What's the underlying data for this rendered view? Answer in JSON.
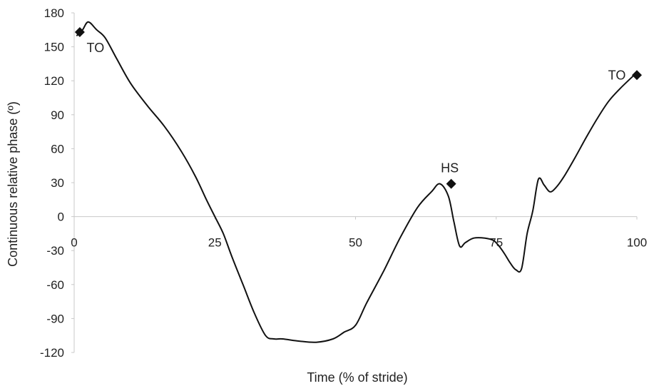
{
  "chart_data": {
    "type": "line",
    "title": "",
    "xlabel": "Time (% of stride)",
    "ylabel": "Continuous relative phase (º)",
    "xlim": [
      0,
      100
    ],
    "ylim": [
      -120,
      180
    ],
    "xticks": [
      0,
      25,
      50,
      75,
      100
    ],
    "yticks": [
      180,
      150,
      120,
      90,
      60,
      30,
      0,
      -30,
      -60,
      -90,
      -120
    ],
    "grid": false,
    "series": [
      {
        "x": [
          0.5,
          1.5,
          2.5,
          4,
          5.5,
          7.5,
          10,
          13,
          16,
          19,
          21.5,
          23.5,
          25,
          26.5,
          28,
          30,
          32,
          34,
          35.5,
          37,
          40,
          43,
          46,
          48,
          50,
          52,
          55,
          58,
          61,
          63.5,
          65,
          66.5,
          67.5,
          68.5,
          69.5,
          71,
          73,
          74.5,
          75.5,
          76.5,
          77.5,
          78.5,
          79.5,
          80.5,
          81.5,
          82.5,
          83.5,
          84.5,
          85.5,
          87,
          89,
          91,
          93,
          95,
          97,
          99.5
        ],
        "y": [
          160,
          165,
          172,
          165,
          158,
          140,
          118,
          98,
          80,
          58,
          36,
          15,
          0,
          -15,
          -35,
          -60,
          -85,
          -105,
          -108,
          -108,
          -110,
          -111,
          -108,
          -102,
          -96,
          -76,
          -48,
          -18,
          8,
          22,
          29,
          18,
          -5,
          -26,
          -23,
          -19,
          -19,
          -21,
          -26,
          -33,
          -41,
          -47,
          -46,
          -15,
          5,
          33,
          28,
          22,
          25,
          35,
          52,
          70,
          87,
          102,
          113,
          125
        ]
      }
    ],
    "markers": [
      {
        "x": 1,
        "y": 163,
        "label": "TO"
      },
      {
        "x": 67,
        "y": 29,
        "label": "HS"
      },
      {
        "x": 100,
        "y": 125,
        "label": "TO"
      }
    ]
  }
}
